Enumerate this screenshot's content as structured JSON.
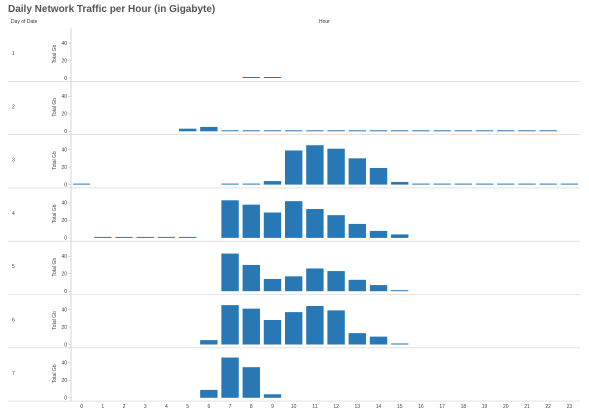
{
  "chart_data": {
    "type": "bar",
    "title": "Daily Network Traffic per Hour (in Gigabyte)",
    "row_header": "Day of Date",
    "column_header": "Hour",
    "ylabel": "Total Gb",
    "ylim": [
      0,
      60
    ],
    "yticks": [
      0,
      20,
      40
    ],
    "grid": false,
    "categories": [
      "0",
      "1",
      "2",
      "3",
      "4",
      "5",
      "6",
      "7",
      "8",
      "9",
      "10",
      "11",
      "12",
      "13",
      "14",
      "15",
      "16",
      "17",
      "18",
      "19",
      "20",
      "21",
      "22",
      "23"
    ],
    "colors": {
      "bar": "#2878b5",
      "axis": "#bbbbbb",
      "row_divider": "#d0d0d0"
    },
    "series": [
      {
        "name": "1",
        "values": [
          null,
          null,
          null,
          null,
          null,
          null,
          null,
          null,
          0.5,
          0.5,
          null,
          null,
          null,
          null,
          null,
          null,
          null,
          null,
          null,
          null,
          null,
          null,
          null,
          null
        ]
      },
      {
        "name": "2",
        "values": [
          null,
          null,
          null,
          null,
          null,
          3,
          5,
          0.5,
          0.5,
          0.5,
          0.5,
          0.5,
          0.5,
          0.5,
          0.5,
          0.5,
          0.5,
          0.5,
          0.5,
          0.5,
          0.5,
          0.5,
          0.5,
          null
        ]
      },
      {
        "name": "3",
        "values": [
          0.5,
          null,
          null,
          null,
          null,
          null,
          null,
          0.5,
          1,
          4,
          39,
          45,
          41,
          30,
          19,
          3,
          0.5,
          0.5,
          0.5,
          0.5,
          0.5,
          0.5,
          0.5,
          0.5
        ]
      },
      {
        "name": "4",
        "values": [
          null,
          0.5,
          0.5,
          0.5,
          0.5,
          0.5,
          null,
          43,
          38,
          29,
          42,
          33,
          26,
          16,
          8,
          4,
          null,
          null,
          null,
          null,
          null,
          null,
          null,
          null
        ]
      },
      {
        "name": "5",
        "values": [
          null,
          null,
          null,
          null,
          null,
          null,
          null,
          43,
          30,
          14,
          17,
          26,
          23,
          13,
          7,
          1,
          null,
          null,
          null,
          null,
          null,
          null,
          null,
          null
        ]
      },
      {
        "name": "6",
        "values": [
          null,
          null,
          null,
          null,
          null,
          null,
          5,
          45,
          41,
          28,
          37,
          44,
          39,
          13,
          9,
          1,
          null,
          null,
          null,
          null,
          null,
          null,
          null,
          null
        ]
      },
      {
        "name": "7",
        "values": [
          null,
          null,
          null,
          null,
          null,
          null,
          9,
          46,
          35,
          4,
          null,
          null,
          null,
          null,
          null,
          null,
          null,
          null,
          null,
          null,
          null,
          null,
          null,
          null
        ]
      }
    ]
  }
}
